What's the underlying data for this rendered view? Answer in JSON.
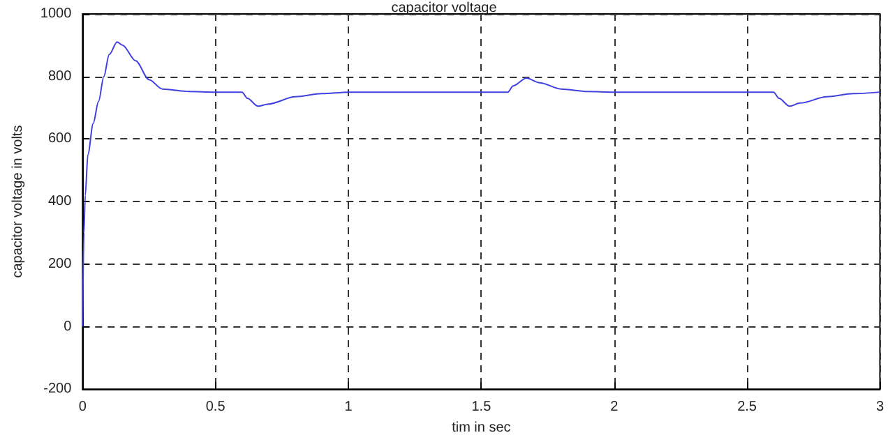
{
  "chart_data": {
    "type": "line",
    "title": "capacitor voltage",
    "xlabel": "tim in sec",
    "ylabel": "capacitor voltage in volts",
    "series": [
      {
        "color": "#4040e0",
        "x": [
          0,
          0.005,
          0.01,
          0.02,
          0.04,
          0.06,
          0.08,
          0.1,
          0.13,
          0.15,
          0.2,
          0.25,
          0.3,
          0.4,
          0.5,
          0.6,
          0.62,
          0.66,
          0.7,
          0.8,
          0.9,
          1.0,
          1.6,
          1.62,
          1.67,
          1.72,
          1.8,
          1.9,
          2.0,
          2.6,
          2.62,
          2.66,
          2.7,
          2.8,
          2.9,
          3.0
        ],
        "values": [
          0,
          300,
          420,
          550,
          650,
          720,
          800,
          870,
          910,
          900,
          850,
          790,
          760,
          752,
          750,
          750,
          730,
          705,
          712,
          735,
          745,
          750,
          750,
          770,
          795,
          780,
          760,
          752,
          750,
          750,
          730,
          705,
          715,
          735,
          745,
          750
        ]
      }
    ],
    "xlim": [
      0,
      3
    ],
    "xticks": [
      0,
      0.5,
      1,
      1.5,
      2,
      2.5,
      3
    ],
    "ylim": [
      -200,
      1000
    ],
    "yticks": [
      -200,
      0,
      200,
      400,
      600,
      800,
      1000
    ],
    "grid": true,
    "marker": "none",
    "line_style": "solid"
  }
}
